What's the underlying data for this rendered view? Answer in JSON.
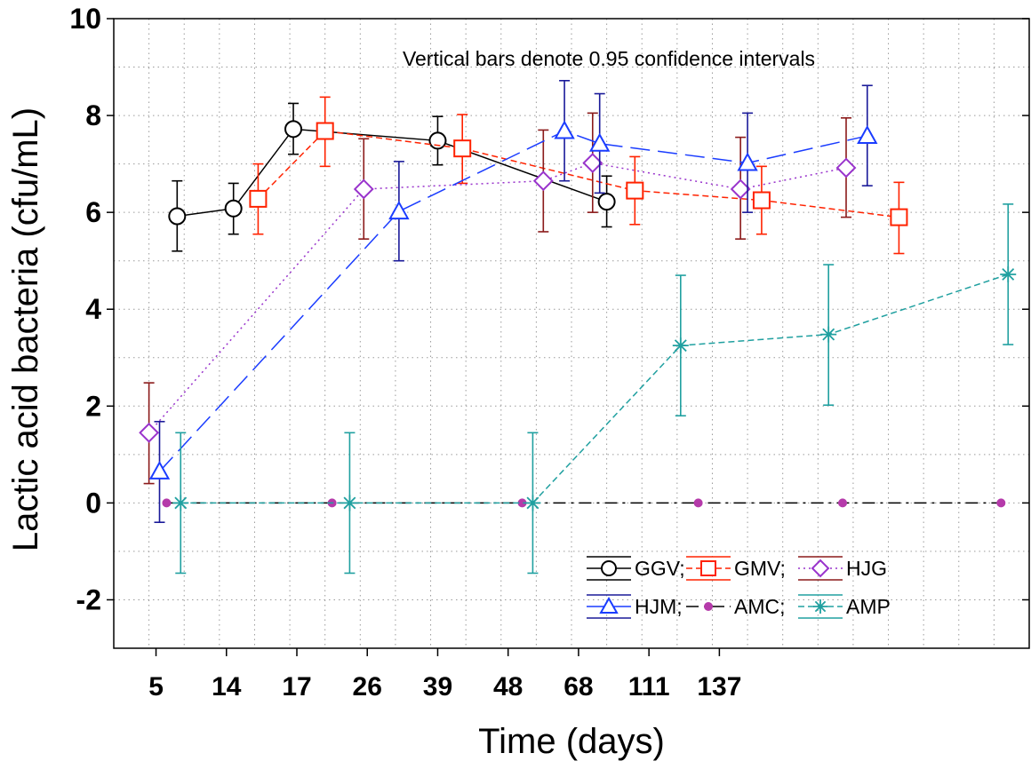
{
  "chart_data": {
    "type": "line",
    "xlabel": "Time (days)",
    "ylabel": "Lactic acid bacteria (cfu/mL)",
    "annotation": "Vertical bars denote 0.95 confidence intervals",
    "categories": [
      "5",
      "14",
      "17",
      "26",
      "39",
      "48",
      "68",
      "111",
      "137"
    ],
    "y_ticks": [
      "10",
      "8",
      "6",
      "4",
      "2",
      "0",
      "-2"
    ],
    "ylim": [
      -3,
      10
    ],
    "grid": true,
    "legend_position": "bottom-right",
    "series": [
      {
        "name": "GGV;",
        "color": "#000000",
        "marker": "circle",
        "line": "solid",
        "points": [
          {
            "x": 4.9,
            "y": 5.92,
            "lo": 5.2,
            "hi": 6.65
          },
          {
            "x": 5.7,
            "y": 6.08,
            "lo": 5.55,
            "hi": 6.6
          },
          {
            "x": 6.55,
            "y": 7.72,
            "lo": 7.2,
            "hi": 8.25
          },
          {
            "x": 8.6,
            "y": 7.48,
            "lo": 6.98,
            "hi": 7.98
          },
          {
            "x": 11.0,
            "y": 6.22,
            "lo": 5.7,
            "hi": 6.75
          }
        ]
      },
      {
        "name": "GMV;",
        "color": "#ff2200",
        "marker": "square",
        "line": "dashed",
        "points": [
          {
            "x": 6.05,
            "y": 6.28,
            "lo": 5.55,
            "hi": 7.0
          },
          {
            "x": 7.0,
            "y": 7.68,
            "lo": 6.95,
            "hi": 8.38
          },
          {
            "x": 8.95,
            "y": 7.32,
            "lo": 6.6,
            "hi": 8.02
          },
          {
            "x": 11.4,
            "y": 6.45,
            "lo": 5.75,
            "hi": 7.15
          },
          {
            "x": 13.2,
            "y": 6.25,
            "lo": 5.55,
            "hi": 6.95
          },
          {
            "x": 15.15,
            "y": 5.9,
            "lo": 5.15,
            "hi": 6.62
          }
        ]
      },
      {
        "name": "HJG",
        "color": "#9933cc",
        "marker": "diamond",
        "line": "dotted",
        "errColor": "#8b1a1a",
        "points": [
          {
            "x": 4.5,
            "y": 1.45,
            "lo": 0.4,
            "hi": 2.48
          },
          {
            "x": 7.55,
            "y": 6.48,
            "lo": 5.45,
            "hi": 7.52
          },
          {
            "x": 10.1,
            "y": 6.65,
            "lo": 5.6,
            "hi": 7.7
          },
          {
            "x": 10.8,
            "y": 7.02,
            "lo": 6.0,
            "hi": 8.05
          },
          {
            "x": 12.9,
            "y": 6.48,
            "lo": 5.45,
            "hi": 7.55
          },
          {
            "x": 14.4,
            "y": 6.92,
            "lo": 5.9,
            "hi": 7.95
          }
        ]
      },
      {
        "name": "HJM;",
        "color": "#1a3cff",
        "marker": "triangle",
        "line": "longdash",
        "errColor": "#1a1a99",
        "points": [
          {
            "x": 4.65,
            "y": 0.65,
            "lo": -0.4,
            "hi": 1.68
          },
          {
            "x": 8.05,
            "y": 6.02,
            "lo": 5.0,
            "hi": 7.05
          },
          {
            "x": 10.4,
            "y": 7.68,
            "lo": 6.65,
            "hi": 8.72
          },
          {
            "x": 10.9,
            "y": 7.42,
            "lo": 6.4,
            "hi": 8.45
          },
          {
            "x": 13.0,
            "y": 7.02,
            "lo": 6.0,
            "hi": 8.05
          },
          {
            "x": 14.7,
            "y": 7.58,
            "lo": 6.55,
            "hi": 8.62
          }
        ]
      },
      {
        "name": "AMC;",
        "color": "#b53aaa",
        "marker": "dot",
        "line": "dashdot",
        "lineColor": "#000000",
        "points": [
          {
            "x": 4.75,
            "y": 0.0
          },
          {
            "x": 7.1,
            "y": 0.0
          },
          {
            "x": 9.8,
            "y": 0.0
          },
          {
            "x": 12.3,
            "y": 0.0
          },
          {
            "x": 14.35,
            "y": 0.0
          },
          {
            "x": 16.6,
            "y": 0.0
          }
        ]
      },
      {
        "name": "AMP",
        "color": "#20a0a0",
        "marker": "asterisk",
        "line": "dashed",
        "points": [
          {
            "x": 4.95,
            "y": 0.0,
            "lo": -1.45,
            "hi": 1.45
          },
          {
            "x": 7.35,
            "y": 0.0,
            "lo": -1.45,
            "hi": 1.45
          },
          {
            "x": 9.95,
            "y": 0.0,
            "lo": -1.45,
            "hi": 1.45
          },
          {
            "x": 12.05,
            "y": 3.25,
            "lo": 1.8,
            "hi": 4.7
          },
          {
            "x": 14.15,
            "y": 3.48,
            "lo": 2.02,
            "hi": 4.92
          },
          {
            "x": 16.7,
            "y": 4.72,
            "lo": 3.27,
            "hi": 6.17
          }
        ]
      }
    ]
  }
}
